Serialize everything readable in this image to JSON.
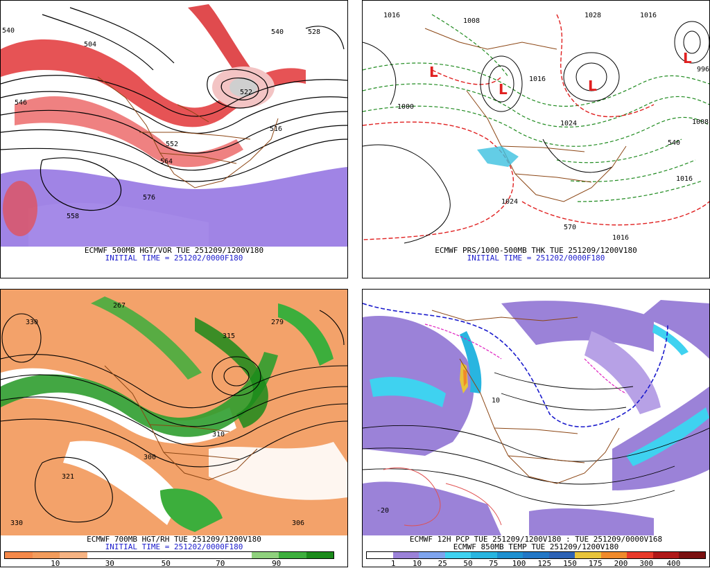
{
  "panels": [
    {
      "id": "hgt-vor",
      "title_line": "ECMWF 500MB HGT/VOR TUE 251209/1200V180",
      "init_line": "INITIAL TIME = 251202/0000F180",
      "contour_labels": [
        "540",
        "504",
        "528",
        "516",
        "522",
        "552",
        "564",
        "558",
        "540",
        "546",
        "576"
      ]
    },
    {
      "id": "prs-thk",
      "title_line": "ECMWF PRS/1000-500MB THK TUE 251209/1200V180",
      "init_line": "INITIAL TIME = 251202/0000F180",
      "contour_labels": [
        "1016",
        "1008",
        "1000",
        "1024",
        "1016",
        "1028",
        "1016",
        "540",
        "1016",
        "996",
        "1008",
        "1016",
        "1024",
        "570"
      ],
      "low_labels": [
        "L",
        "L",
        "L",
        "L"
      ]
    },
    {
      "id": "hgt-rh",
      "title_line": "ECMWF 700MB HGT/RH TUE 251209/1200V180",
      "init_line": "INITIAL TIME = 251202/0000F180",
      "contour_labels": [
        "267",
        "330",
        "300",
        "321",
        "310",
        "315",
        "279",
        "306",
        "330"
      ],
      "colorbar": {
        "colors": [
          "#f5894a",
          "#f39c5c",
          "#f6b383",
          "#ffffff",
          "#ffffff",
          "#ffffff",
          "#ffffff",
          "#ffffff",
          "#ffffff",
          "#8fd17d",
          "#3cae3c",
          "#1a8a1a"
        ],
        "ticks": [
          "10",
          "30",
          "50",
          "70",
          "90"
        ]
      }
    },
    {
      "id": "pcp-temp",
      "title_line": "ECMWF 12H PCP TUE 251209/1200V180 : TUE 251209/0000V168",
      "init_line": "ECMWF 850MB TEMP TUE 251209/1200V180",
      "contour_labels": [
        "-20",
        "10"
      ],
      "colorbar": {
        "colors": [
          "#ffffff",
          "#9b82d8",
          "#7ea4ee",
          "#3fd2f0",
          "#28b5e0",
          "#1e90d0",
          "#2277c6",
          "#2d62b5",
          "#e8c43a",
          "#f08a2a",
          "#e83a2a",
          "#b01818",
          "#7a1010"
        ],
        "ticks": [
          "1",
          "10",
          "25",
          "50",
          "75",
          "100",
          "125",
          "150",
          "175",
          "200",
          "300",
          "400"
        ]
      }
    }
  ]
}
